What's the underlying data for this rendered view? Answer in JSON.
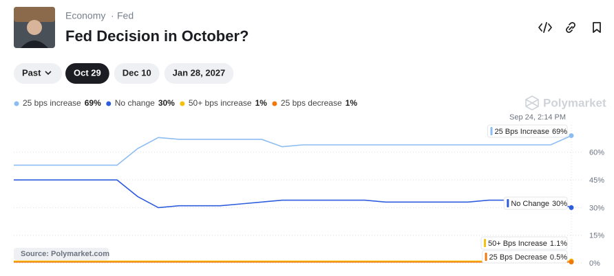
{
  "header": {
    "category": "Economy",
    "subcategory": "Fed",
    "title": "Fed Decision in October?"
  },
  "filters": {
    "range": "Past",
    "dates": [
      "Oct 29",
      "Dec 10",
      "Jan 28, 2027"
    ],
    "selected": 0
  },
  "watermark": "Polymarket",
  "source": "Source: Polymarket.com",
  "chart_data": {
    "type": "line",
    "hover_label": "Sep 24, 2:14 PM",
    "categories": [
      null,
      null,
      null,
      null,
      null,
      null,
      null,
      null,
      null,
      null,
      null,
      null,
      null,
      null,
      null,
      null,
      null,
      null,
      null,
      null,
      null,
      null,
      null,
      null,
      null,
      null,
      null,
      null
    ],
    "ylim": [
      0,
      80
    ],
    "yticks": [
      {
        "value": 0,
        "label": "0%"
      },
      {
        "value": 15,
        "label": "15%"
      },
      {
        "value": 30,
        "label": "30%"
      },
      {
        "value": 45,
        "label": "45%"
      },
      {
        "value": 60,
        "label": "60%"
      }
    ],
    "grid": true,
    "series": [
      {
        "name": "25 bps increase",
        "legend_label": "69%",
        "end_name": "25 Bps Increase",
        "color": "#8bbcf2",
        "values": [
          53,
          53,
          53,
          53,
          53,
          53,
          62,
          68,
          67,
          67,
          67,
          67,
          67,
          63,
          64,
          64,
          64,
          64,
          64,
          64,
          64,
          64,
          64,
          64,
          64,
          64,
          64,
          69
        ],
        "value_labels": [
          null,
          null,
          null,
          null,
          null,
          null,
          null,
          null,
          null,
          null,
          null,
          null,
          null,
          null,
          null,
          null,
          null,
          null,
          null,
          null,
          null,
          null,
          null,
          null,
          null,
          null,
          null,
          "69%"
        ]
      },
      {
        "name": "No change",
        "legend_label": "30%",
        "end_name": "No Change",
        "color": "#2e5cde",
        "values": [
          45,
          45,
          45,
          45,
          45,
          45,
          36,
          30,
          31,
          31,
          31,
          32,
          33,
          34,
          34,
          34,
          34,
          34,
          33,
          33,
          33,
          33,
          33,
          34,
          34,
          34,
          34,
          30
        ],
        "value_labels": [
          null,
          null,
          null,
          null,
          null,
          null,
          null,
          null,
          null,
          null,
          null,
          null,
          null,
          null,
          null,
          null,
          null,
          null,
          null,
          null,
          null,
          null,
          null,
          null,
          null,
          null,
          null,
          "30%"
        ]
      },
      {
        "name": "50+ bps increase",
        "legend_label": "1%",
        "end_name": "50+ Bps Increase",
        "color": "#f5c10e",
        "values": [
          1,
          1,
          1,
          1,
          1,
          1,
          1,
          1,
          1,
          1,
          1,
          1,
          1,
          1,
          1,
          1,
          1,
          1,
          1,
          1,
          1,
          1,
          1,
          1,
          1,
          1,
          1,
          1.1
        ],
        "value_labels": [
          null,
          null,
          null,
          null,
          null,
          null,
          null,
          null,
          null,
          null,
          null,
          null,
          null,
          null,
          null,
          null,
          null,
          null,
          null,
          null,
          null,
          null,
          null,
          null,
          null,
          null,
          null,
          "1.1%"
        ]
      },
      {
        "name": "25 bps decrease",
        "legend_label": "1%",
        "end_name": "25 Bps Decrease",
        "color": "#f2780c",
        "values": [
          0.5,
          0.5,
          0.5,
          0.5,
          0.5,
          0.5,
          0.5,
          0.5,
          0.5,
          0.5,
          0.5,
          0.5,
          0.5,
          0.5,
          0.5,
          0.5,
          0.5,
          0.5,
          0.5,
          0.5,
          0.5,
          0.5,
          0.5,
          0.5,
          0.5,
          0.5,
          0.5,
          0.5
        ],
        "value_labels": [
          null,
          null,
          null,
          null,
          null,
          null,
          null,
          null,
          null,
          null,
          null,
          null,
          null,
          null,
          null,
          null,
          null,
          null,
          null,
          null,
          null,
          null,
          null,
          null,
          null,
          null,
          null,
          "0.5%"
        ]
      }
    ]
  }
}
